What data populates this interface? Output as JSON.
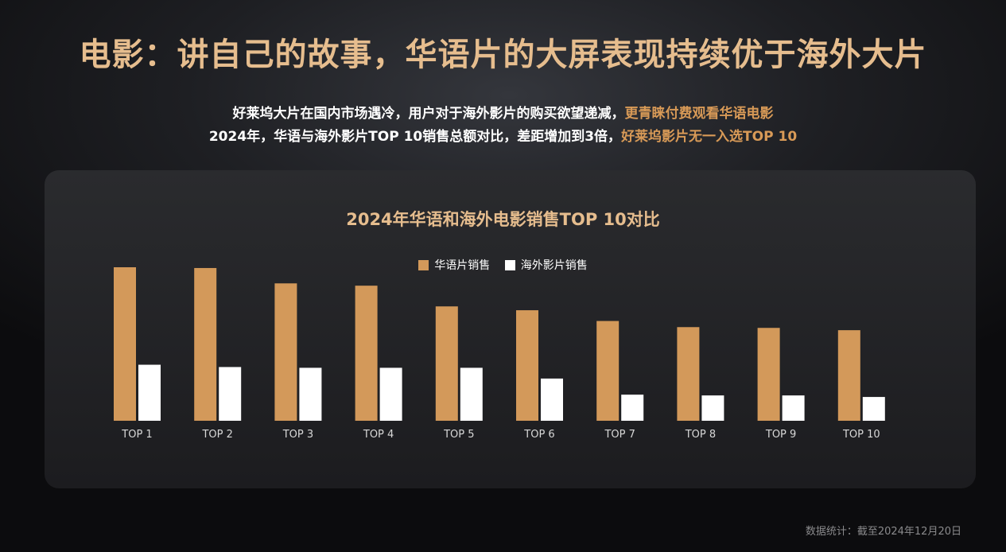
{
  "headline": "电影：讲自己的故事，华语片的大屏表现持续优于海外大片",
  "subtitle": {
    "line1_plain": "好莱坞大片在国内市场遇冷，用户对于海外影片的购买欲望递减，",
    "line1_highlight": "更青睐付费观看华语电影",
    "line2_plain": "2024年，华语与海外影片TOP 10销售总额对比，差距增加到3倍，",
    "line2_highlight": "好莱坞影片无一入选TOP 10"
  },
  "footer": "数据统计：截至2024年12月20日",
  "colors": {
    "chinese": "#d3995a",
    "overseas": "#ffffff",
    "highlight": "#d89a57",
    "title": "#e6bd8e"
  },
  "chart_data": {
    "type": "bar",
    "title": "2024年华语和海外电影销售TOP 10对比",
    "categories": [
      "TOP 1",
      "TOP 2",
      "TOP 3",
      "TOP 4",
      "TOP 5",
      "TOP 6",
      "TOP 7",
      "TOP 8",
      "TOP 9",
      "TOP 10"
    ],
    "series": [
      {
        "name": "华语片销售",
        "values": [
          100,
          99.5,
          89.5,
          88,
          74.5,
          72,
          65,
          61,
          60.5,
          59
        ]
      },
      {
        "name": "海外影片销售",
        "values": [
          36.5,
          35,
          34.5,
          34.5,
          34.5,
          27.5,
          17,
          16.5,
          16.5,
          15.5
        ]
      }
    ],
    "ylim": [
      0,
      100
    ],
    "grid": false,
    "legend_position": "top-center",
    "xlabel": "",
    "ylabel": ""
  }
}
